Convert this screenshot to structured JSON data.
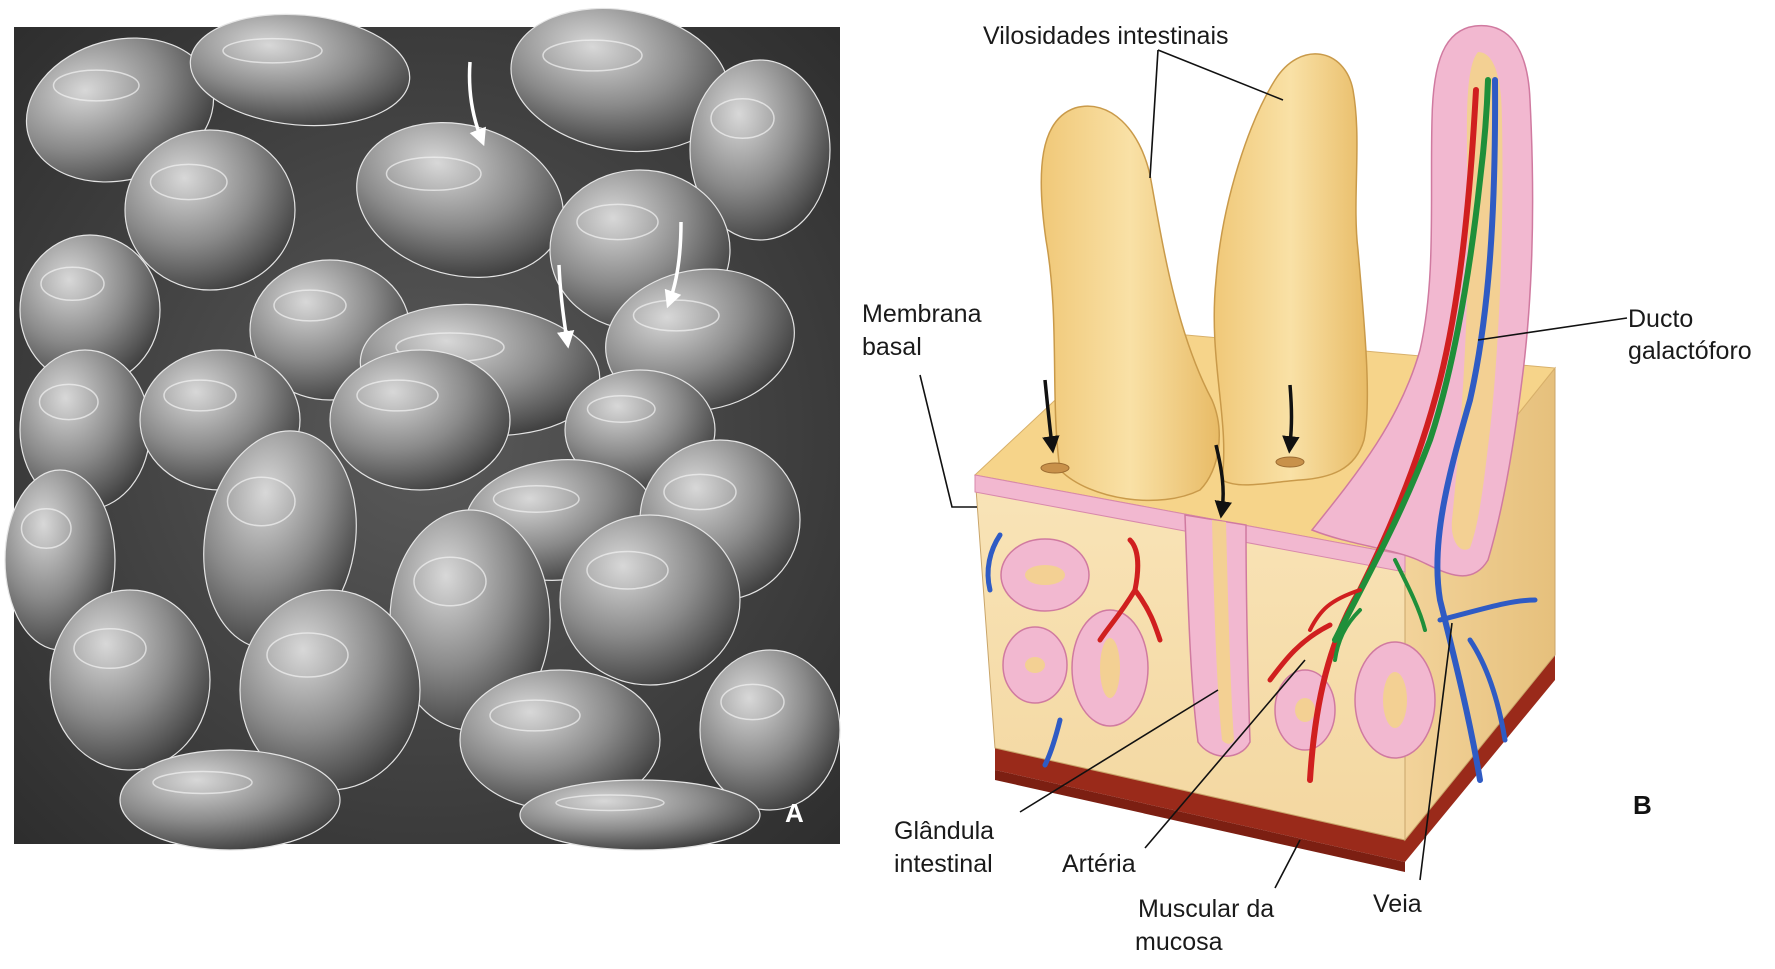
{
  "panel_a": {
    "letter": "A",
    "colors": {
      "background": "#4a4a4a",
      "villus_light": "#cfcfcf",
      "villus_dark": "#6a6a6a",
      "arrows": "#ffffff"
    }
  },
  "panel_b": {
    "letter": "B",
    "labels": {
      "villi": "Vilosidades intestinais",
      "basement_membrane_1": "Membrana",
      "basement_membrane_2": "basal",
      "lacteal_1": "Ducto",
      "lacteal_2": "galactóforo",
      "gland_1": "Glândula",
      "gland_2": "intestinal",
      "artery": "Artéria",
      "muscularis_1": "Muscular da",
      "muscularis_2": "mucosa",
      "vein": "Veia"
    },
    "colors": {
      "villus_fill": "#f5d58e",
      "tissue_fill": "#f7dfb0",
      "epithelium": "#f2b8d0",
      "artery": "#d01f1f",
      "vein": "#2f5bc4",
      "lacteal": "#1f8f3a",
      "muscularis": "#9a2a1a"
    }
  }
}
